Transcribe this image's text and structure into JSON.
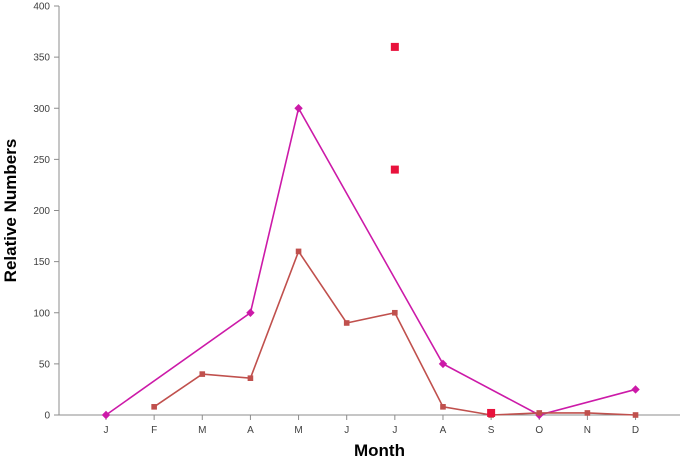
{
  "chart_data": {
    "type": "line",
    "title": "",
    "xlabel": "Month",
    "ylabel": "Relative Numbers",
    "categories": [
      "J",
      "F",
      "M",
      "A",
      "M",
      "J",
      "J",
      "A",
      "S",
      "O",
      "N",
      "D"
    ],
    "ylim": [
      0,
      400
    ],
    "yticks": [
      0,
      50,
      100,
      150,
      200,
      250,
      300,
      350,
      400
    ],
    "grid": false,
    "legend": "none",
    "series": [
      {
        "marker": "diamond",
        "color": "#cc1aa8",
        "points": [
          {
            "x": "J",
            "i": 0,
            "y": 0
          },
          {
            "x": "A",
            "i": 3,
            "y": 100
          },
          {
            "x": "M",
            "i": 4,
            "y": 300
          },
          {
            "x": "A",
            "i": 7,
            "y": 50
          },
          {
            "x": "O",
            "i": 9,
            "y": 0
          },
          {
            "x": "D",
            "i": 11,
            "y": 25
          }
        ]
      },
      {
        "marker": "square",
        "color": "#c0504d",
        "points": [
          {
            "x": "F",
            "i": 1,
            "y": 8
          },
          {
            "x": "M",
            "i": 2,
            "y": 40
          },
          {
            "x": "A",
            "i": 3,
            "y": 36
          },
          {
            "x": "M",
            "i": 4,
            "y": 160
          },
          {
            "x": "J",
            "i": 5,
            "y": 90
          },
          {
            "x": "J",
            "i": 6,
            "y": 100
          },
          {
            "x": "A",
            "i": 7,
            "y": 8
          },
          {
            "x": "S",
            "i": 8,
            "y": 0
          },
          {
            "x": "O",
            "i": 9,
            "y": 2
          },
          {
            "x": "N",
            "i": 10,
            "y": 2
          },
          {
            "x": "D",
            "i": 11,
            "y": 0
          }
        ]
      },
      {
        "marker": "large-square",
        "color": "#e8123c",
        "line": false,
        "points": [
          {
            "x": "J",
            "i": 6,
            "y": 360
          },
          {
            "x": "J",
            "i": 6,
            "y": 240
          },
          {
            "x": "S",
            "i": 8,
            "y": 2
          }
        ]
      }
    ]
  }
}
